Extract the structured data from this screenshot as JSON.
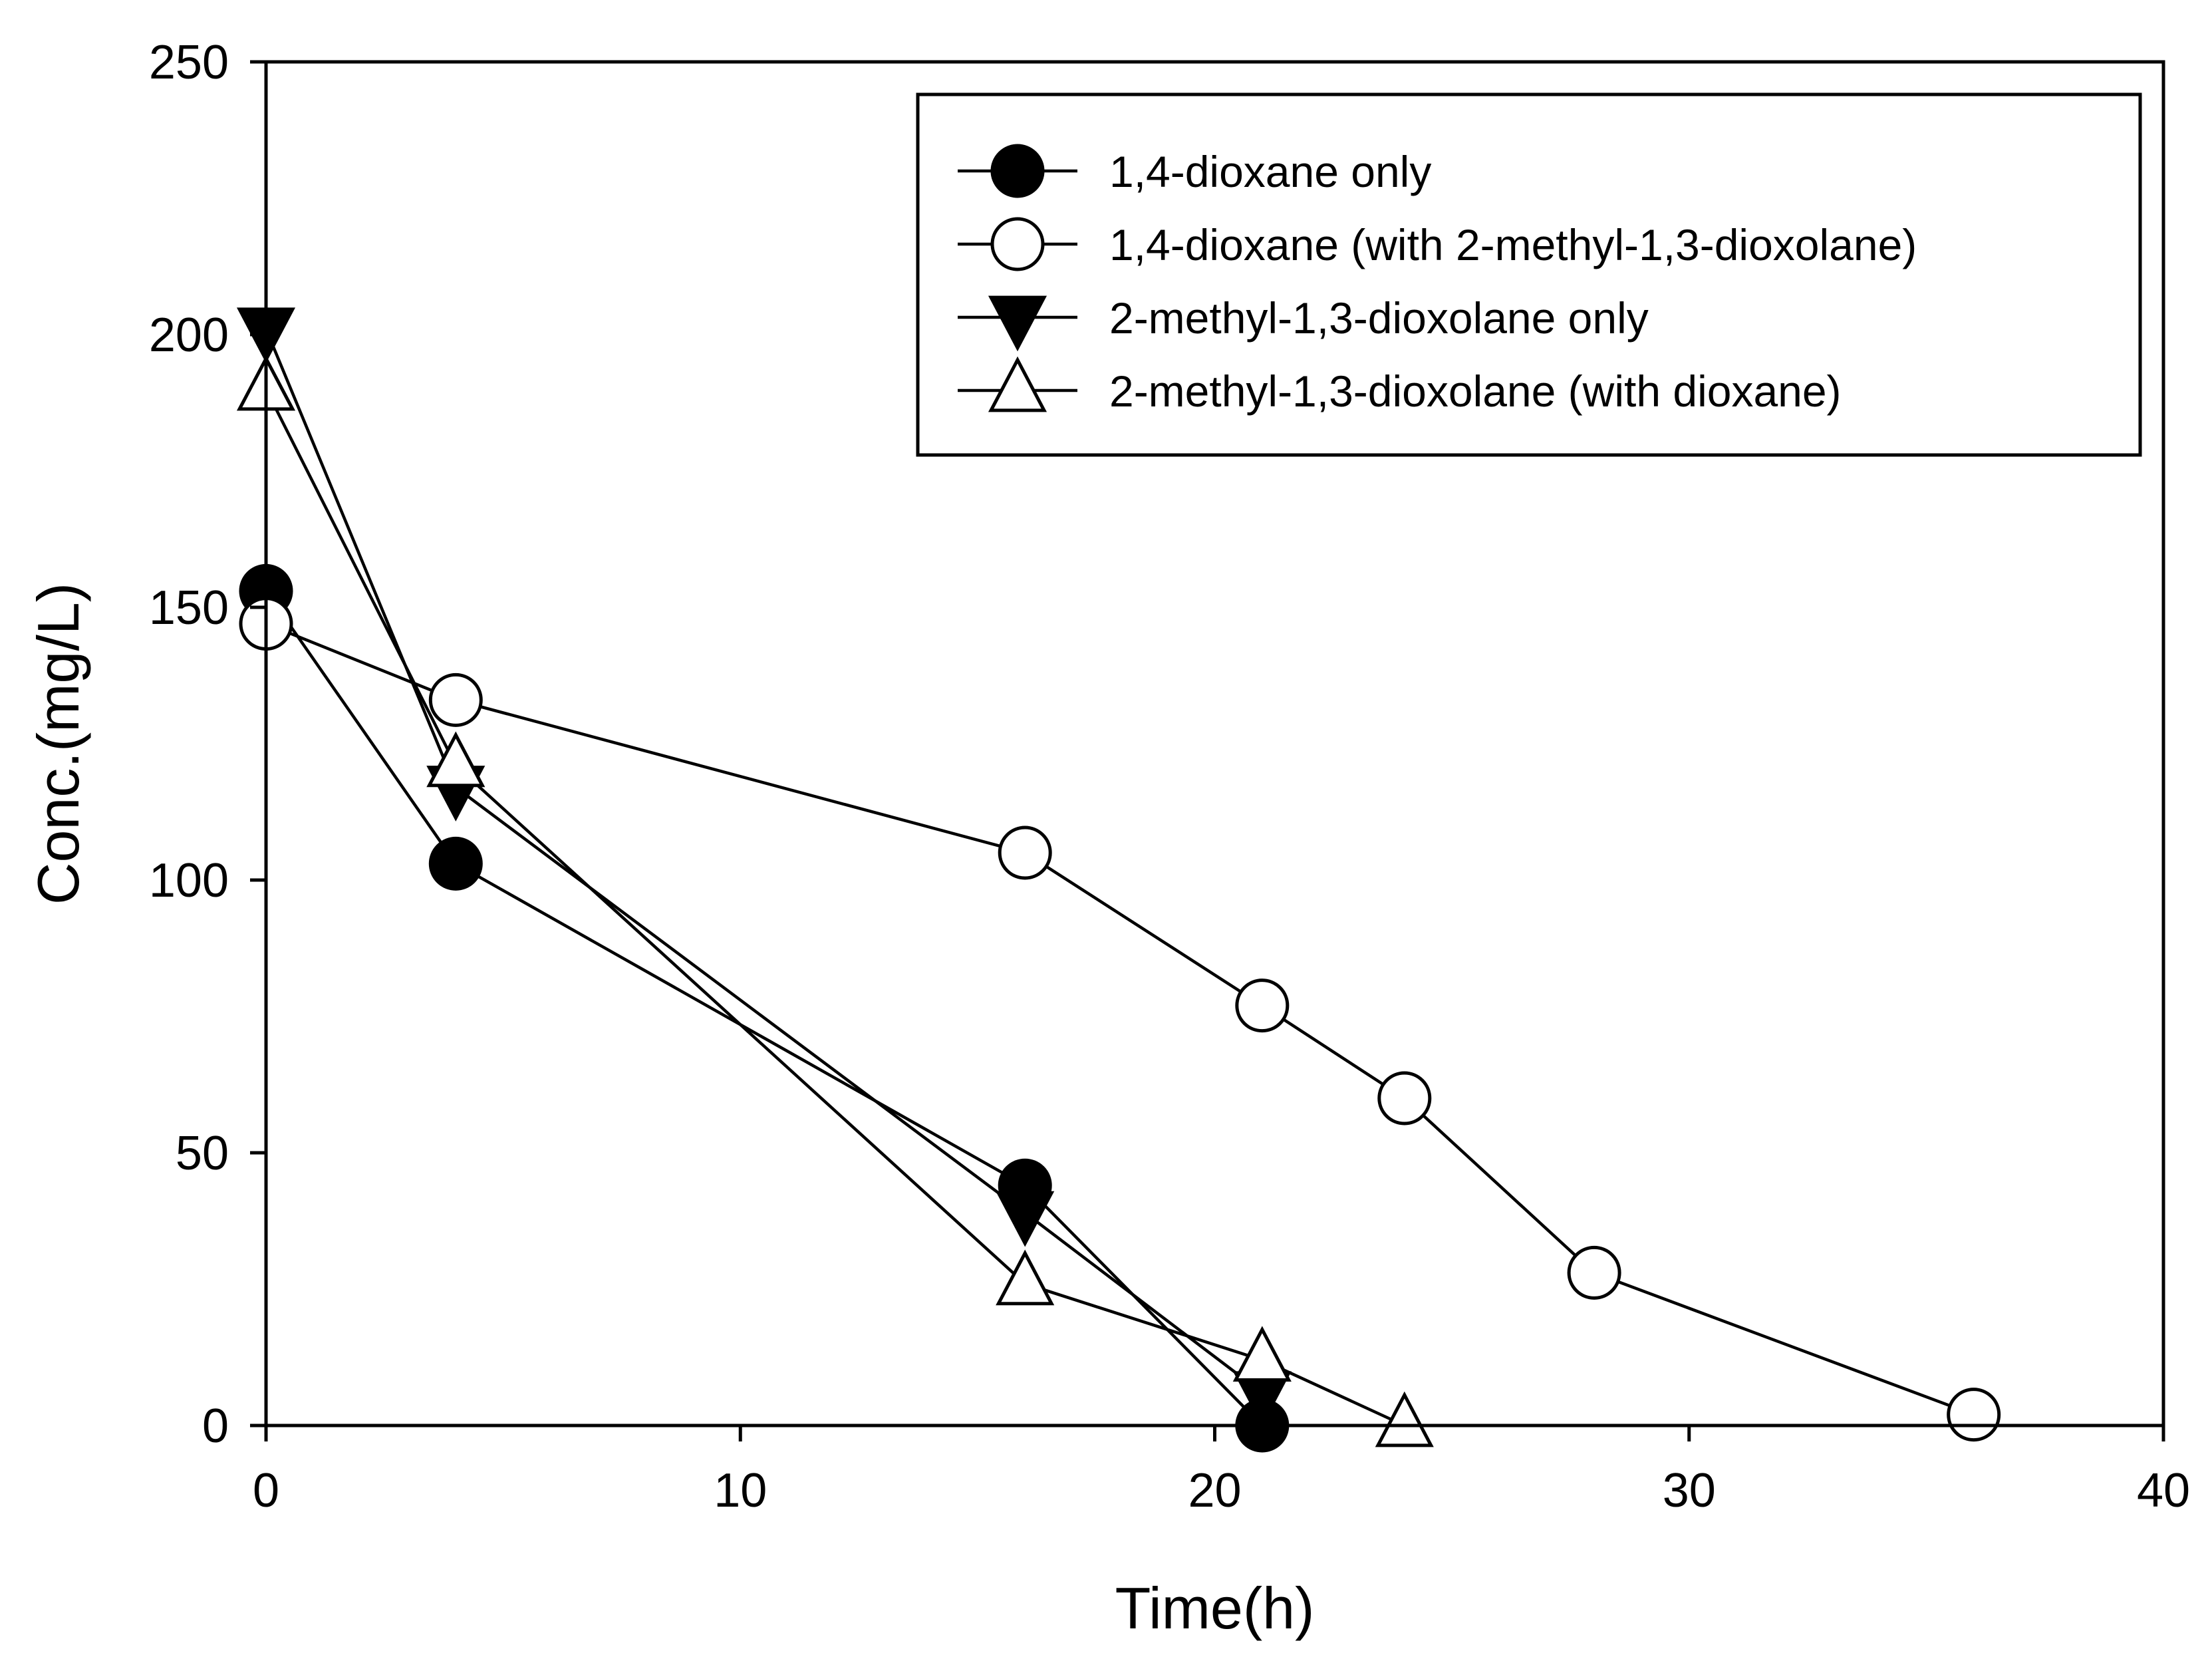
{
  "chart_data": {
    "type": "line",
    "title": "",
    "xlabel": "Time(h)",
    "ylabel": "Conc.(mg/L)",
    "xlim": [
      0,
      40
    ],
    "ylim": [
      0,
      250
    ],
    "xticks": [
      0,
      10,
      20,
      30,
      40
    ],
    "yticks": [
      0,
      50,
      100,
      150,
      200,
      250
    ],
    "xtick_labels": [
      "0",
      "10",
      "20",
      "30",
      "40"
    ],
    "ytick_labels": [
      "0",
      "50",
      "100",
      "150",
      "200",
      "250"
    ],
    "grid": false,
    "legend_position": "top-right",
    "series": [
      {
        "name": "1,4-dioxane only",
        "marker": "circle-filled",
        "x": [
          0,
          4,
          16,
          21
        ],
        "y": [
          153,
          103,
          44,
          0
        ]
      },
      {
        "name": "1,4-dioxane (with 2-methyl-1,3-dioxolane)",
        "marker": "circle-open",
        "x": [
          0,
          4,
          16,
          21,
          24,
          28,
          36
        ],
        "y": [
          147,
          133,
          105,
          77,
          60,
          28,
          2
        ]
      },
      {
        "name": "2-methyl-1,3-dioxolane only",
        "marker": "triangle-down-filled",
        "x": [
          0,
          4,
          16,
          21
        ],
        "y": [
          201,
          117,
          39,
          6
        ]
      },
      {
        "name": "2-methyl-1,3-dioxolane (with dioxane)",
        "marker": "triangle-up-open",
        "x": [
          0,
          4,
          16,
          21,
          24
        ],
        "y": [
          190,
          121,
          26,
          12,
          0
        ]
      }
    ]
  }
}
